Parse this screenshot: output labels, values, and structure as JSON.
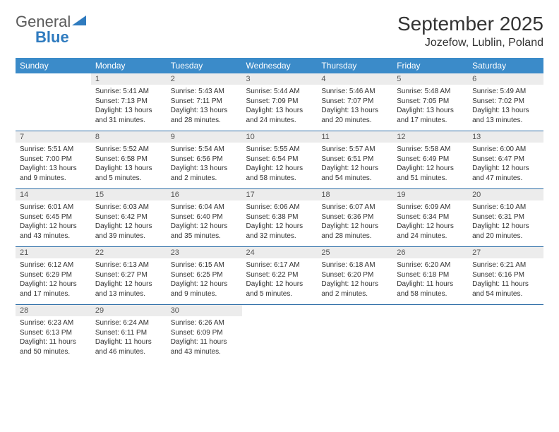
{
  "logo": {
    "general": "General",
    "blue": "Blue"
  },
  "title": "September 2025",
  "location": "Jozefow, Lublin, Poland",
  "day_headers": [
    "Sunday",
    "Monday",
    "Tuesday",
    "Wednesday",
    "Thursday",
    "Friday",
    "Saturday"
  ],
  "colors": {
    "header_bg": "#3b8bc9",
    "header_text": "#ffffff",
    "daynum_bg": "#ececec",
    "week_border": "#2f6fa8",
    "body_text": "#333333",
    "logo_gray": "#5a5a5a",
    "logo_blue": "#2f7bbf"
  },
  "weeks": [
    [
      null,
      {
        "n": "1",
        "sr": "Sunrise: 5:41 AM",
        "ss": "Sunset: 7:13 PM",
        "d1": "Daylight: 13 hours",
        "d2": "and 31 minutes."
      },
      {
        "n": "2",
        "sr": "Sunrise: 5:43 AM",
        "ss": "Sunset: 7:11 PM",
        "d1": "Daylight: 13 hours",
        "d2": "and 28 minutes."
      },
      {
        "n": "3",
        "sr": "Sunrise: 5:44 AM",
        "ss": "Sunset: 7:09 PM",
        "d1": "Daylight: 13 hours",
        "d2": "and 24 minutes."
      },
      {
        "n": "4",
        "sr": "Sunrise: 5:46 AM",
        "ss": "Sunset: 7:07 PM",
        "d1": "Daylight: 13 hours",
        "d2": "and 20 minutes."
      },
      {
        "n": "5",
        "sr": "Sunrise: 5:48 AM",
        "ss": "Sunset: 7:05 PM",
        "d1": "Daylight: 13 hours",
        "d2": "and 17 minutes."
      },
      {
        "n": "6",
        "sr": "Sunrise: 5:49 AM",
        "ss": "Sunset: 7:02 PM",
        "d1": "Daylight: 13 hours",
        "d2": "and 13 minutes."
      }
    ],
    [
      {
        "n": "7",
        "sr": "Sunrise: 5:51 AM",
        "ss": "Sunset: 7:00 PM",
        "d1": "Daylight: 13 hours",
        "d2": "and 9 minutes."
      },
      {
        "n": "8",
        "sr": "Sunrise: 5:52 AM",
        "ss": "Sunset: 6:58 PM",
        "d1": "Daylight: 13 hours",
        "d2": "and 5 minutes."
      },
      {
        "n": "9",
        "sr": "Sunrise: 5:54 AM",
        "ss": "Sunset: 6:56 PM",
        "d1": "Daylight: 13 hours",
        "d2": "and 2 minutes."
      },
      {
        "n": "10",
        "sr": "Sunrise: 5:55 AM",
        "ss": "Sunset: 6:54 PM",
        "d1": "Daylight: 12 hours",
        "d2": "and 58 minutes."
      },
      {
        "n": "11",
        "sr": "Sunrise: 5:57 AM",
        "ss": "Sunset: 6:51 PM",
        "d1": "Daylight: 12 hours",
        "d2": "and 54 minutes."
      },
      {
        "n": "12",
        "sr": "Sunrise: 5:58 AM",
        "ss": "Sunset: 6:49 PM",
        "d1": "Daylight: 12 hours",
        "d2": "and 51 minutes."
      },
      {
        "n": "13",
        "sr": "Sunrise: 6:00 AM",
        "ss": "Sunset: 6:47 PM",
        "d1": "Daylight: 12 hours",
        "d2": "and 47 minutes."
      }
    ],
    [
      {
        "n": "14",
        "sr": "Sunrise: 6:01 AM",
        "ss": "Sunset: 6:45 PM",
        "d1": "Daylight: 12 hours",
        "d2": "and 43 minutes."
      },
      {
        "n": "15",
        "sr": "Sunrise: 6:03 AM",
        "ss": "Sunset: 6:42 PM",
        "d1": "Daylight: 12 hours",
        "d2": "and 39 minutes."
      },
      {
        "n": "16",
        "sr": "Sunrise: 6:04 AM",
        "ss": "Sunset: 6:40 PM",
        "d1": "Daylight: 12 hours",
        "d2": "and 35 minutes."
      },
      {
        "n": "17",
        "sr": "Sunrise: 6:06 AM",
        "ss": "Sunset: 6:38 PM",
        "d1": "Daylight: 12 hours",
        "d2": "and 32 minutes."
      },
      {
        "n": "18",
        "sr": "Sunrise: 6:07 AM",
        "ss": "Sunset: 6:36 PM",
        "d1": "Daylight: 12 hours",
        "d2": "and 28 minutes."
      },
      {
        "n": "19",
        "sr": "Sunrise: 6:09 AM",
        "ss": "Sunset: 6:34 PM",
        "d1": "Daylight: 12 hours",
        "d2": "and 24 minutes."
      },
      {
        "n": "20",
        "sr": "Sunrise: 6:10 AM",
        "ss": "Sunset: 6:31 PM",
        "d1": "Daylight: 12 hours",
        "d2": "and 20 minutes."
      }
    ],
    [
      {
        "n": "21",
        "sr": "Sunrise: 6:12 AM",
        "ss": "Sunset: 6:29 PM",
        "d1": "Daylight: 12 hours",
        "d2": "and 17 minutes."
      },
      {
        "n": "22",
        "sr": "Sunrise: 6:13 AM",
        "ss": "Sunset: 6:27 PM",
        "d1": "Daylight: 12 hours",
        "d2": "and 13 minutes."
      },
      {
        "n": "23",
        "sr": "Sunrise: 6:15 AM",
        "ss": "Sunset: 6:25 PM",
        "d1": "Daylight: 12 hours",
        "d2": "and 9 minutes."
      },
      {
        "n": "24",
        "sr": "Sunrise: 6:17 AM",
        "ss": "Sunset: 6:22 PM",
        "d1": "Daylight: 12 hours",
        "d2": "and 5 minutes."
      },
      {
        "n": "25",
        "sr": "Sunrise: 6:18 AM",
        "ss": "Sunset: 6:20 PM",
        "d1": "Daylight: 12 hours",
        "d2": "and 2 minutes."
      },
      {
        "n": "26",
        "sr": "Sunrise: 6:20 AM",
        "ss": "Sunset: 6:18 PM",
        "d1": "Daylight: 11 hours",
        "d2": "and 58 minutes."
      },
      {
        "n": "27",
        "sr": "Sunrise: 6:21 AM",
        "ss": "Sunset: 6:16 PM",
        "d1": "Daylight: 11 hours",
        "d2": "and 54 minutes."
      }
    ],
    [
      {
        "n": "28",
        "sr": "Sunrise: 6:23 AM",
        "ss": "Sunset: 6:13 PM",
        "d1": "Daylight: 11 hours",
        "d2": "and 50 minutes."
      },
      {
        "n": "29",
        "sr": "Sunrise: 6:24 AM",
        "ss": "Sunset: 6:11 PM",
        "d1": "Daylight: 11 hours",
        "d2": "and 46 minutes."
      },
      {
        "n": "30",
        "sr": "Sunrise: 6:26 AM",
        "ss": "Sunset: 6:09 PM",
        "d1": "Daylight: 11 hours",
        "d2": "and 43 minutes."
      },
      null,
      null,
      null,
      null
    ]
  ]
}
